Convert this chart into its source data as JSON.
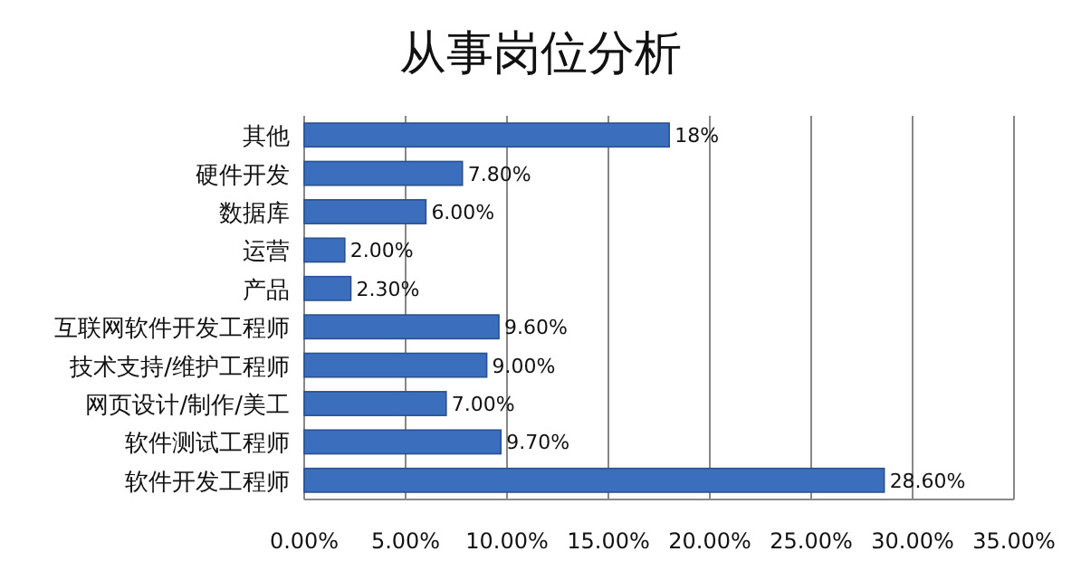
{
  "chart_data": {
    "type": "bar",
    "orientation": "horizontal",
    "title": "从事岗位分析",
    "categories": [
      "其他",
      "硬件开发",
      "数据库",
      "运营",
      "产品",
      "互联网软件开发工程师",
      "技术支持/维护工程师",
      "网页设计/制作/美工",
      "软件测试工程师",
      "软件开发工程师"
    ],
    "values": [
      18,
      7.8,
      6,
      2,
      2.3,
      9.6,
      9,
      7,
      9.7,
      28.6
    ],
    "value_labels": [
      "18%",
      "7.80%",
      "6.00%",
      "2.00%",
      "2.30%",
      "9.60%",
      "9.00%",
      "7.00%",
      "9.70%",
      "28.60%"
    ],
    "color": "#3b6fbd",
    "xlim": [
      0,
      35
    ],
    "xticks": [
      {
        "value": 0,
        "label": "0.00%"
      },
      {
        "value": 5,
        "label": "5.00%"
      },
      {
        "value": 10,
        "label": "10.00%"
      },
      {
        "value": 15,
        "label": "15.00%"
      },
      {
        "value": 20,
        "label": "20.00%"
      },
      {
        "value": 25,
        "label": "25.00%"
      },
      {
        "value": 30,
        "label": "30.00%"
      },
      {
        "value": 35,
        "label": "35.00%"
      }
    ],
    "grid": "x"
  }
}
